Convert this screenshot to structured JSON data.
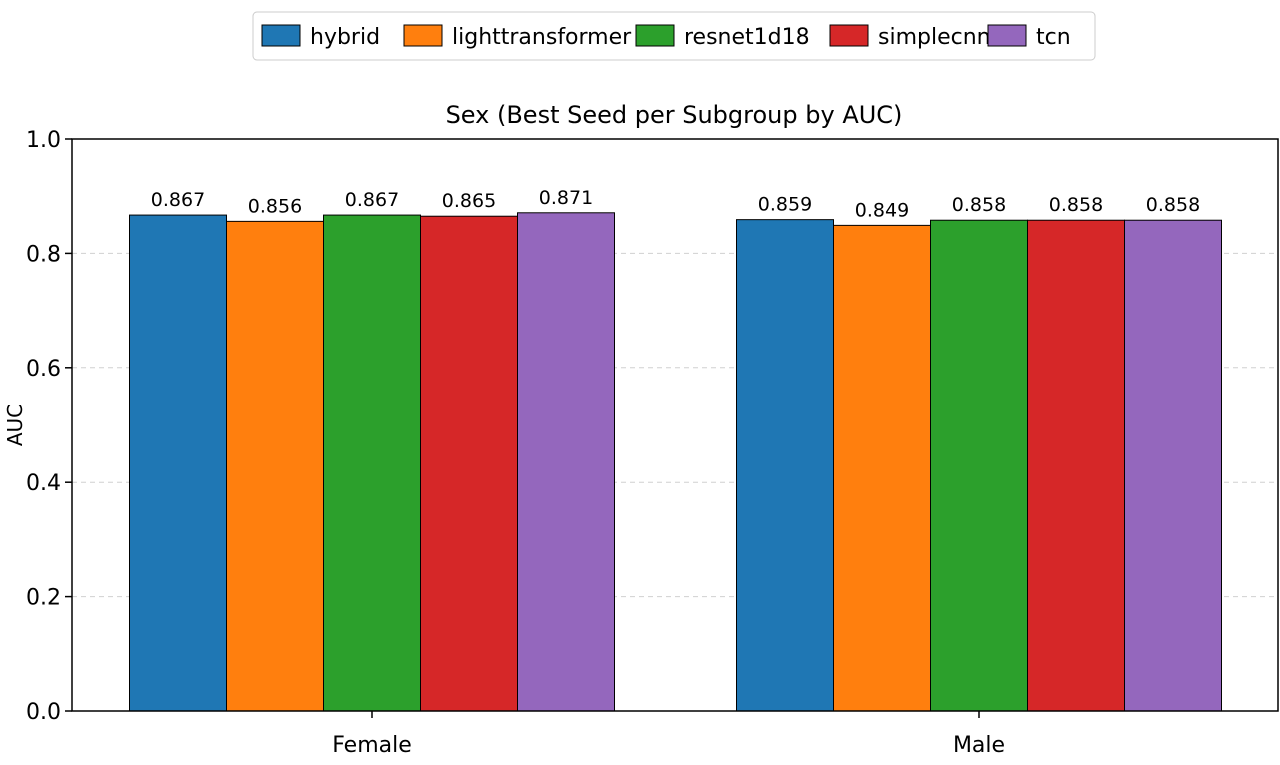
{
  "chart_data": {
    "type": "bar",
    "title": "Sex (Best Seed per Subgroup by AUC)",
    "xlabel": "",
    "ylabel": "AUC",
    "ylim": [
      0.0,
      1.0
    ],
    "yticks": [
      "0.0",
      "0.2",
      "0.4",
      "0.6",
      "0.8",
      "1.0"
    ],
    "categories": [
      "Female",
      "Male"
    ],
    "grid": "y-dashed",
    "legend_position": "top-center",
    "series": [
      {
        "name": "hybrid",
        "color": "#1f77b4",
        "values": [
          0.867,
          0.859
        ],
        "labels": [
          "0.867",
          "0.859"
        ]
      },
      {
        "name": "lighttransformer",
        "color": "#ff7f0e",
        "values": [
          0.856,
          0.849
        ],
        "labels": [
          "0.856",
          "0.849"
        ]
      },
      {
        "name": "resnet1d18",
        "color": "#2ca02c",
        "values": [
          0.867,
          0.858
        ],
        "labels": [
          "0.867",
          "0.858"
        ]
      },
      {
        "name": "simplecnn",
        "color": "#d62728",
        "values": [
          0.865,
          0.858
        ],
        "labels": [
          "0.865",
          "0.858"
        ]
      },
      {
        "name": "tcn",
        "color": "#9467bd",
        "values": [
          0.871,
          0.858
        ],
        "labels": [
          "0.871",
          "0.858"
        ]
      }
    ]
  }
}
